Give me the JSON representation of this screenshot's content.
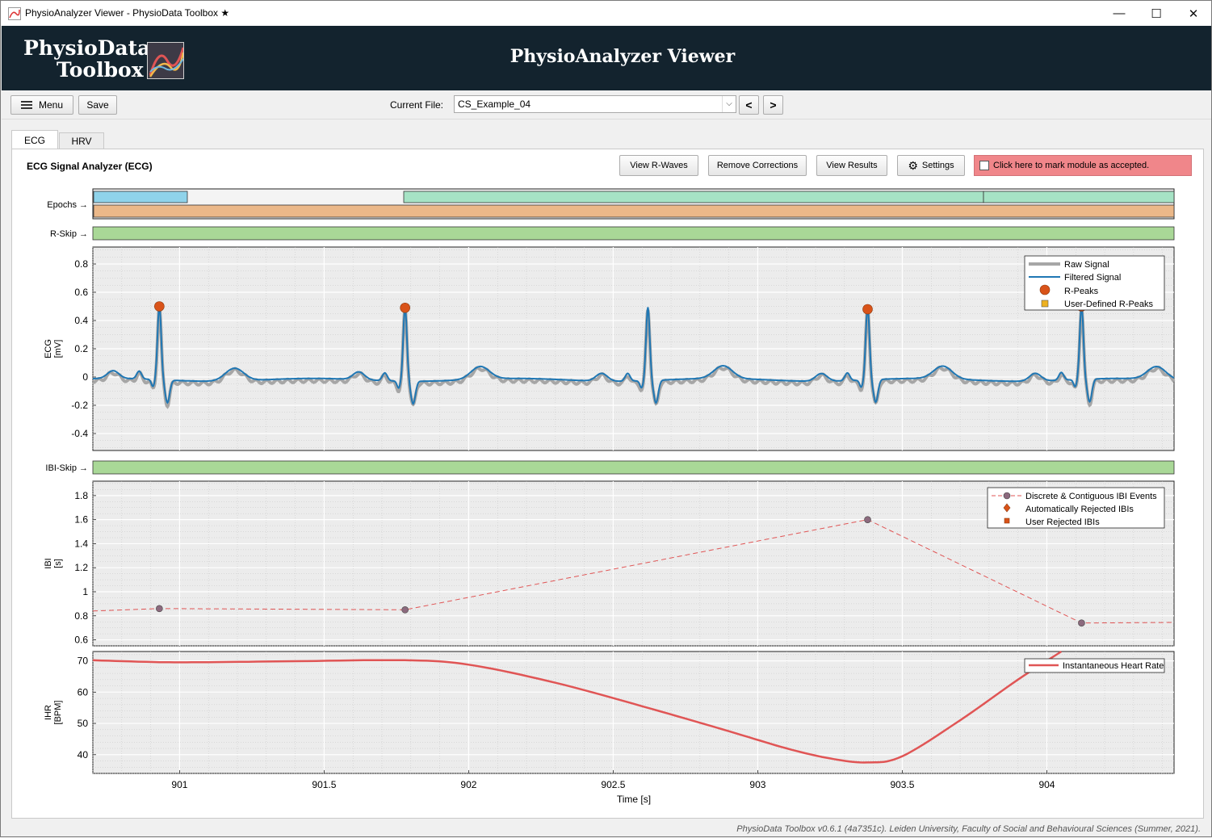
{
  "window": {
    "title": "PhysioAnalyzer Viewer - PhysioData Toolbox ★",
    "minimize": "—",
    "maximize": "☐",
    "close": "✕"
  },
  "banner": {
    "logo_line1": "PhysioData",
    "logo_line2": "Toolbox",
    "title": "PhysioAnalyzer Viewer"
  },
  "toolbar": {
    "menu_label": "Menu",
    "save_label": "Save",
    "current_file_label": "Current File:",
    "current_file_value": "CS_Example_04",
    "prev_label": "<",
    "next_label": ">"
  },
  "tabs": [
    {
      "label": "ECG",
      "active": true
    },
    {
      "label": "HRV",
      "active": false
    }
  ],
  "panel": {
    "title": "ECG Signal Analyzer (ECG)",
    "buttons": {
      "view_rwaves": "View R-Waves",
      "remove_corrections": "Remove Corrections",
      "view_results": "View Results",
      "settings": "Settings"
    },
    "accept_label": "Click here to mark module as accepted."
  },
  "strips": {
    "epochs": "Epochs →",
    "rskip": "R-Skip →",
    "ibiskip": "IBI-Skip →"
  },
  "colors": {
    "banner": "#13232e",
    "raw": "#a6a6a6",
    "filtered": "#1f77b4",
    "rpeak": "#d95319",
    "userpeak": "#edb120",
    "ibi": "#e05555",
    "ihr": "#e05555",
    "skip": "#a9d897",
    "epoch_blue": "#8fd3ea",
    "epoch_green": "#a6e3c5",
    "epoch_orange": "#ebb889",
    "accept": "#f0868a"
  },
  "chart_data": [
    {
      "type": "line",
      "name": "ecg",
      "ylabel_lines": [
        "ECG",
        "[mV]"
      ],
      "xlim": [
        900.7,
        904.44
      ],
      "ylim": [
        -0.52,
        0.92
      ],
      "yticks": [
        -0.4,
        -0.2,
        0,
        0.2,
        0.4,
        0.6,
        0.8
      ],
      "ytick_labels": [
        "-0.4",
        "-0.2",
        "0",
        "0.2",
        "0.4",
        "0.6",
        "0.8"
      ],
      "grid": true,
      "legend": {
        "placement": "top-right",
        "entries": [
          "Raw Signal",
          "Filtered Signal",
          "R-Peaks",
          "User-Defined R-Peaks"
        ]
      },
      "beats": [
        900.93,
        901.78,
        902.62,
        903.38,
        904.12
      ],
      "rpeaks": [
        {
          "x": 900.93,
          "y": 0.5
        },
        {
          "x": 901.78,
          "y": 0.49
        },
        {
          "x": 903.38,
          "y": 0.48
        },
        {
          "x": 904.12,
          "y": 0.5
        }
      ]
    },
    {
      "type": "line",
      "name": "ibi",
      "ylabel_lines": [
        "IBI",
        "[s]"
      ],
      "xlim": [
        900.7,
        904.44
      ],
      "ylim": [
        0.55,
        1.92
      ],
      "yticks": [
        0.6,
        0.8,
        1,
        1.2,
        1.4,
        1.6,
        1.8
      ],
      "ytick_labels": [
        "0.6",
        "0.8",
        "1",
        "1.2",
        "1.4",
        "1.6",
        "1.8"
      ],
      "grid": true,
      "legend": {
        "placement": "top-right",
        "entries": [
          "Discrete & Contiguous IBI Events",
          "Automatically Rejected IBIs",
          "User Rejected IBIs"
        ]
      },
      "line_x": [
        900.7,
        900.93,
        901.78,
        903.38,
        904.12,
        904.44
      ],
      "line_y": [
        0.84,
        0.86,
        0.85,
        1.6,
        0.74,
        0.745
      ],
      "points": [
        {
          "x": 900.93,
          "y": 0.86
        },
        {
          "x": 901.78,
          "y": 0.85
        },
        {
          "x": 903.38,
          "y": 1.6
        },
        {
          "x": 904.12,
          "y": 0.74
        }
      ]
    },
    {
      "type": "line",
      "name": "ihr",
      "ylabel_lines": [
        "IHR",
        "[BPM]"
      ],
      "xlabel": "Time [s]",
      "xlim": [
        900.7,
        904.44
      ],
      "ylim": [
        34,
        73
      ],
      "yticks": [
        40,
        50,
        60,
        70
      ],
      "ytick_labels": [
        "40",
        "50",
        "60",
        "70"
      ],
      "xticks": [
        901,
        901.5,
        902,
        902.5,
        903,
        903.5,
        904
      ],
      "xtick_labels": [
        "901",
        "901.5",
        "902",
        "902.5",
        "903",
        "903.5",
        "904"
      ],
      "grid": true,
      "legend": {
        "placement": "top-right",
        "entries": [
          "Instantaneous Heart Rate"
        ]
      },
      "x": [
        900.7,
        900.93,
        901.1,
        901.4,
        901.78,
        902.0,
        902.3,
        902.6,
        902.9,
        903.1,
        903.25,
        903.38,
        903.5,
        903.7,
        903.9,
        904.05
      ],
      "y": [
        70.2,
        69.6,
        69.6,
        69.9,
        70.2,
        68.8,
        63.0,
        55.5,
        47.5,
        42.0,
        38.8,
        37.5,
        39.5,
        51.0,
        64.0,
        73.0
      ]
    }
  ],
  "footer": "PhysioData Toolbox v0.6.1 (4a7351c). Leiden University, Faculty of Social and Behavioural Sciences (Summer, 2021)."
}
